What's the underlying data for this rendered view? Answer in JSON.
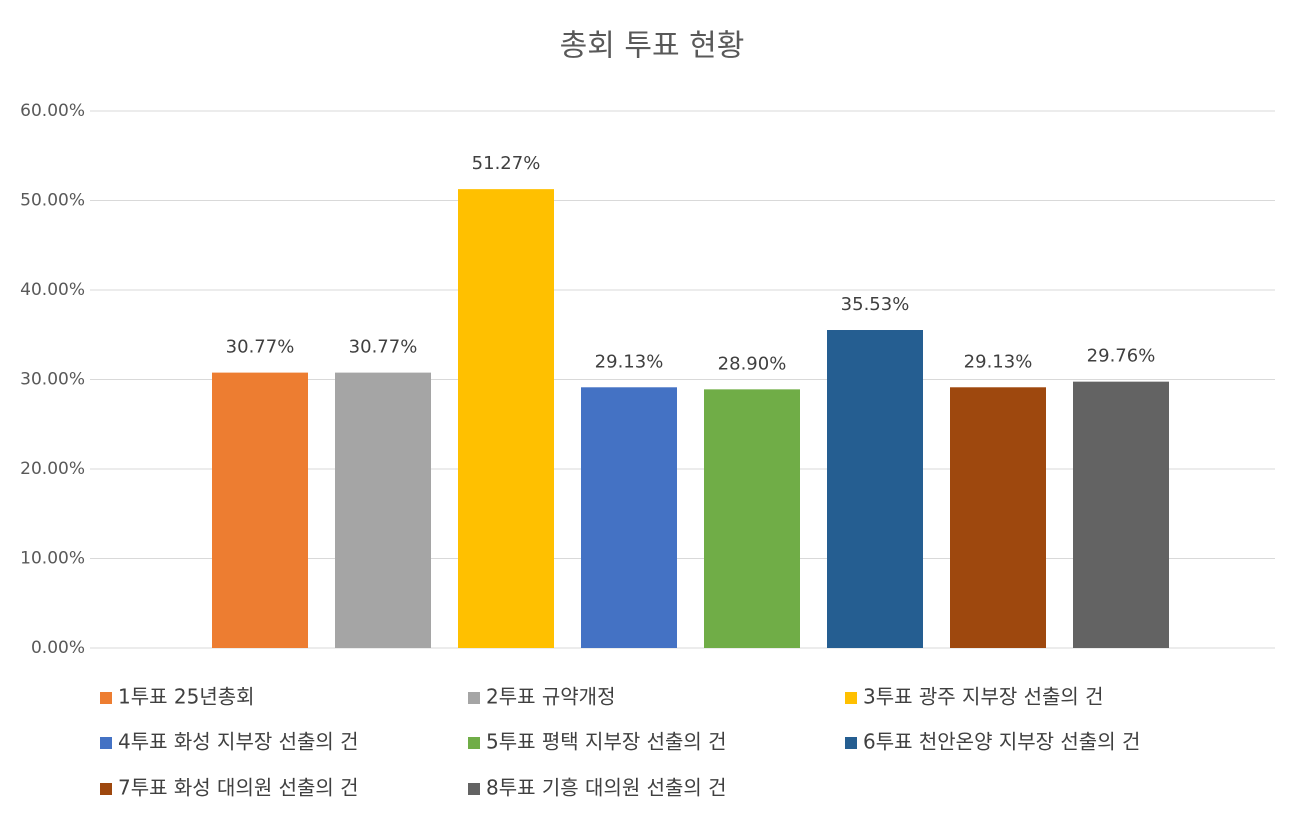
{
  "chart_data": {
    "type": "bar",
    "title": "총회 투표 현황",
    "categories": [
      null
    ],
    "series": [
      {
        "name": "1투표 25년총회",
        "color": "#ed7d31",
        "values": [
          30.77
        ],
        "value_labels": [
          "30.77%"
        ]
      },
      {
        "name": "2투표 규약개정",
        "color": "#a5a5a5",
        "values": [
          30.77
        ],
        "value_labels": [
          "30.77%"
        ]
      },
      {
        "name": "3투표 광주 지부장 선출의 건",
        "color": "#ffc000",
        "values": [
          51.27
        ],
        "value_labels": [
          "51.27%"
        ]
      },
      {
        "name": "4투표 화성 지부장 선출의 건",
        "color": "#4472c4",
        "values": [
          29.13
        ],
        "value_labels": [
          "29.13%"
        ]
      },
      {
        "name": "5투표 평택 지부장 선출의 건",
        "color": "#70ad47",
        "values": [
          28.9
        ],
        "value_labels": [
          "28.90%"
        ]
      },
      {
        "name": "6투표 천안온양 지부장 선출의 건",
        "color": "#255e91",
        "values": [
          35.53
        ],
        "value_labels": [
          "35.53%"
        ]
      },
      {
        "name": "7투표 화성 대의원 선출의 건",
        "color": "#9e480e",
        "values": [
          29.13
        ],
        "value_labels": [
          "29.13%"
        ]
      },
      {
        "name": "8투표 기흥 대의원 선출의 건",
        "color": "#636363",
        "values": [
          29.76
        ],
        "value_labels": [
          "29.76%"
        ]
      }
    ],
    "ylim": [
      0,
      60
    ],
    "yticks": [
      {
        "value": 0,
        "label": "0.00%"
      },
      {
        "value": 10,
        "label": "10.00%"
      },
      {
        "value": 20,
        "label": "20.00%"
      },
      {
        "value": 30,
        "label": "30.00%"
      },
      {
        "value": 40,
        "label": "40.00%"
      },
      {
        "value": 50,
        "label": "50.00%"
      },
      {
        "value": 60,
        "label": "60.00%"
      }
    ],
    "grid": true,
    "legend": "bottom"
  }
}
